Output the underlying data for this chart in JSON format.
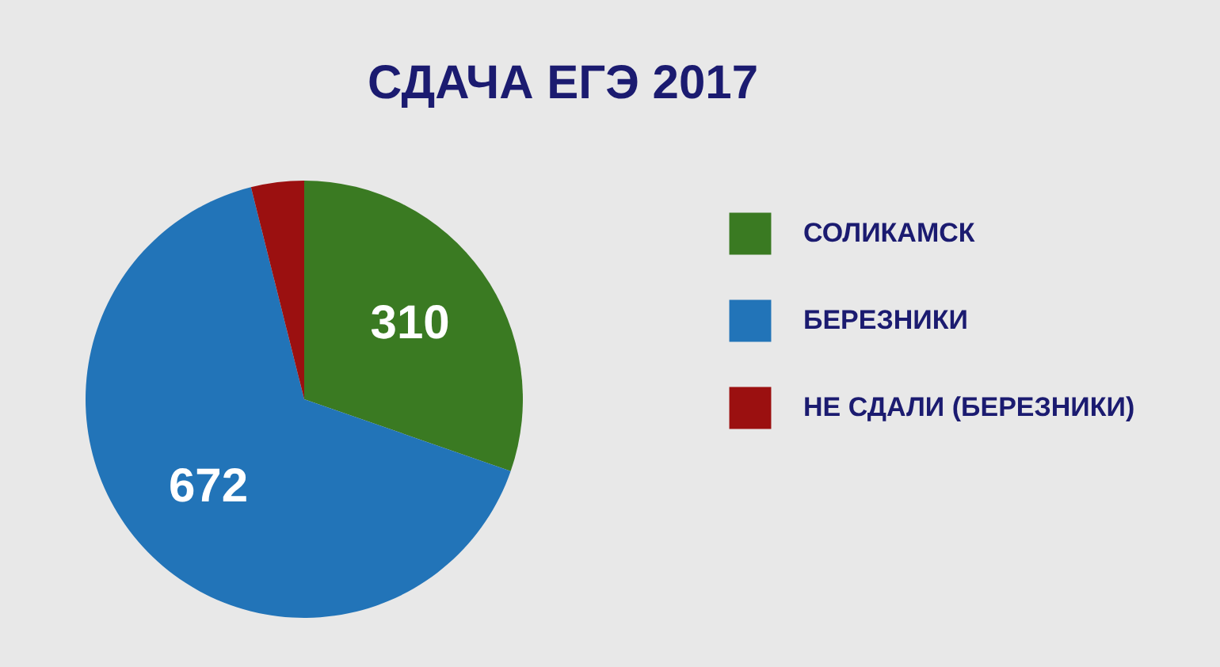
{
  "chart_data": {
    "type": "pie",
    "title": "СДАЧА ЕГЭ 2017",
    "categories": [
      "СОЛИКАМСК",
      "БЕРЕЗНИКИ",
      "НЕ СДАЛИ (БЕРЕЗНИКИ)"
    ],
    "values": [
      310,
      672,
      40
    ],
    "value_labels": [
      "310",
      "672",
      null
    ],
    "colors": [
      "#3a7a22",
      "#2274b8",
      "#9b1010"
    ],
    "legend": "right"
  }
}
